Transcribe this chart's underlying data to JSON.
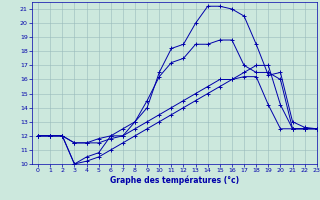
{
  "xlabel": "Graphe des températures (°c)",
  "xlim": [
    -0.5,
    23
  ],
  "ylim": [
    10,
    21.5
  ],
  "yticks": [
    10,
    11,
    12,
    13,
    14,
    15,
    16,
    17,
    18,
    19,
    20,
    21
  ],
  "xticks": [
    0,
    1,
    2,
    3,
    4,
    5,
    6,
    7,
    8,
    9,
    10,
    11,
    12,
    13,
    14,
    15,
    16,
    17,
    18,
    19,
    20,
    21,
    22,
    23
  ],
  "bg_color": "#cce8dd",
  "line_color": "#0000aa",
  "grid_color": "#99bbbb",
  "lines": [
    {
      "x": [
        0,
        1,
        2,
        3,
        4,
        5,
        6,
        7,
        8,
        9,
        10,
        11,
        12,
        13,
        14,
        15,
        16,
        17,
        18,
        19,
        20,
        21,
        22,
        23
      ],
      "y": [
        12,
        12,
        12,
        10,
        10.2,
        10.5,
        11,
        11.5,
        12,
        12.5,
        13,
        13.5,
        14,
        14.5,
        15,
        15.5,
        16,
        16.5,
        17,
        17,
        14.2,
        12.5,
        12.5,
        12.5
      ]
    },
    {
      "x": [
        0,
        1,
        2,
        3,
        4,
        5,
        6,
        7,
        8,
        9,
        10,
        11,
        12,
        13,
        14,
        15,
        16,
        17,
        18,
        19,
        20,
        21,
        22,
        23
      ],
      "y": [
        12,
        12,
        12,
        11.5,
        11.5,
        11.5,
        11.8,
        12,
        12.5,
        13,
        13.5,
        14,
        14.5,
        15,
        15.5,
        16,
        16,
        16.2,
        16.2,
        14.2,
        12.5,
        12.5,
        12.5,
        12.5
      ]
    },
    {
      "x": [
        0,
        1,
        2,
        3,
        4,
        5,
        6,
        7,
        8,
        9,
        10,
        11,
        12,
        13,
        14,
        15,
        16,
        17,
        18,
        19,
        20,
        21,
        22,
        23
      ],
      "y": [
        12,
        12,
        12,
        10,
        10.5,
        10.8,
        12,
        12,
        13,
        14.5,
        16.2,
        17.2,
        17.5,
        18.5,
        18.5,
        18.8,
        18.8,
        17,
        16.5,
        16.5,
        16,
        12.5,
        12.5,
        12.5
      ]
    },
    {
      "x": [
        0,
        1,
        2,
        3,
        4,
        5,
        6,
        7,
        8,
        9,
        10,
        11,
        12,
        13,
        14,
        15,
        16,
        17,
        18,
        19,
        20,
        21,
        22,
        23
      ],
      "y": [
        12,
        12,
        12,
        11.5,
        11.5,
        11.8,
        12,
        12.5,
        13,
        14,
        16.5,
        18.2,
        18.5,
        20,
        21.2,
        21.2,
        21,
        20.5,
        18.5,
        16.3,
        16.5,
        13,
        12.6,
        12.5
      ]
    }
  ]
}
